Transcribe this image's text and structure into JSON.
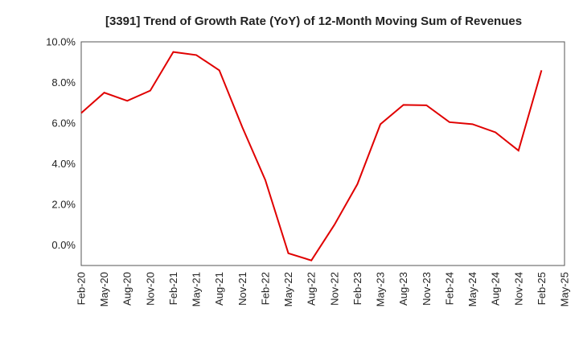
{
  "chart_data": {
    "type": "line",
    "title": "[3391]  Trend of Growth Rate (YoY) of 12-Month Moving Sum of Revenues",
    "xlabel": "",
    "ylabel": "",
    "ylim": [
      -1.0,
      10.0
    ],
    "y_ticks": [
      "10.0%",
      "8.0%",
      "6.0%",
      "4.0%",
      "2.0%",
      "0.0%"
    ],
    "y_tick_values": [
      10,
      8,
      6,
      4,
      2,
      0
    ],
    "x_ticks": [
      "Feb-20",
      "May-20",
      "Aug-20",
      "Nov-20",
      "Feb-21",
      "May-21",
      "Aug-21",
      "Nov-21",
      "Feb-22",
      "May-22",
      "Aug-22",
      "Nov-22",
      "Feb-23",
      "May-23",
      "Aug-23",
      "Nov-23",
      "Feb-24",
      "May-24",
      "Aug-24",
      "Nov-24",
      "Feb-25",
      "May-25"
    ],
    "grid": true,
    "legend": "none",
    "series": [
      {
        "color": "#e00000",
        "values": [
          6.5,
          7.5,
          7.1,
          7.6,
          9.5,
          9.35,
          8.6,
          5.8,
          3.2,
          -0.4,
          -0.75,
          1.0,
          3.0,
          5.95,
          6.9,
          6.88,
          6.05,
          5.95,
          5.55,
          4.65,
          8.6
        ]
      }
    ]
  }
}
